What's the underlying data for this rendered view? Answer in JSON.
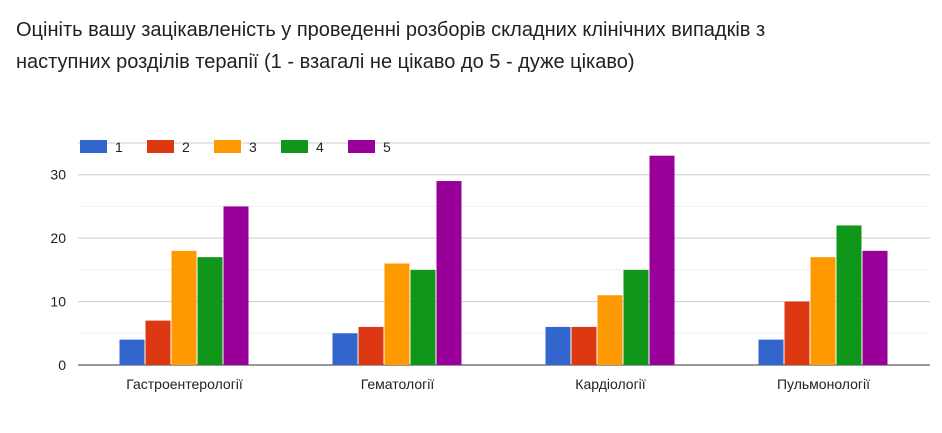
{
  "question": {
    "title_line1": "Оцініть вашу зацікавленість у проведенні розборів складних клінічних випадків з",
    "title_line2": "наступних розділів терапії (1 - взагалі не цікаво до 5 - дуже цікаво)"
  },
  "chart_data": {
    "type": "bar",
    "categories": [
      "Гастроентерології",
      "Гематології",
      "Кардіології",
      "Пульмонології"
    ],
    "series": [
      {
        "name": "1",
        "color": "#3366cc",
        "values": [
          4,
          5,
          6,
          4
        ]
      },
      {
        "name": "2",
        "color": "#dc3912",
        "values": [
          7,
          6,
          6,
          10
        ]
      },
      {
        "name": "3",
        "color": "#ff9900",
        "values": [
          18,
          16,
          11,
          17
        ]
      },
      {
        "name": "4",
        "color": "#109618",
        "values": [
          17,
          15,
          15,
          22
        ]
      },
      {
        "name": "5",
        "color": "#990099",
        "values": [
          25,
          29,
          33,
          18
        ]
      }
    ],
    "yticks": [
      0,
      10,
      20,
      30
    ],
    "ylim": [
      0,
      35
    ],
    "grid": true,
    "legend_position": "top-left"
  }
}
